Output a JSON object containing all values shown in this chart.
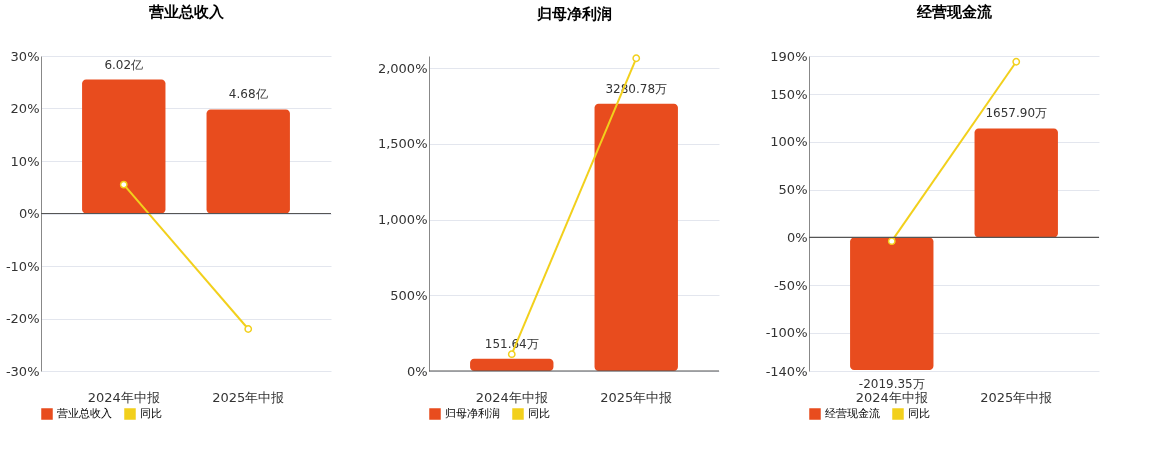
{
  "chart_data": [
    {
      "type": "bar",
      "title": "营业总收入",
      "categories": [
        "2024年中报",
        "2025年中报"
      ],
      "ylim": [
        -30,
        30
      ],
      "yticks": [
        {
          "value": 30,
          "label": "30%"
        },
        {
          "value": 20,
          "label": "20%"
        },
        {
          "value": 10,
          "label": "10%"
        },
        {
          "value": 0,
          "label": "0%"
        },
        {
          "value": -10,
          "label": "-10%"
        },
        {
          "value": -20,
          "label": "-20%"
        },
        {
          "value": -30,
          "label": "-30%"
        }
      ],
      "y2lim": [
        -7.08,
        7.08
      ],
      "grid": "y",
      "legend": "bottom",
      "marker": "circle",
      "series": [
        {
          "name": "营业总收入",
          "axis": "y2",
          "color": "#e84c1e",
          "values": [
            6.02,
            4.68
          ],
          "value_labels": [
            "6.02亿",
            "4.68亿"
          ]
        },
        {
          "name": "同比",
          "type": "line",
          "color": "#f2d01c",
          "values": [
            5.5,
            -22
          ]
        }
      ]
    },
    {
      "type": "bar",
      "title": "归母净利润",
      "categories": [
        "2024年中报",
        "2025年中报"
      ],
      "ylim": [
        0,
        2080
      ],
      "yticks": [
        {
          "value": 0,
          "label": "0%"
        },
        {
          "value": 500,
          "label": "500%"
        },
        {
          "value": 1000,
          "label": "1,000%"
        },
        {
          "value": 1500,
          "label": "1,500%"
        },
        {
          "value": 2000,
          "label": "2,000%"
        }
      ],
      "y2lim": [
        0,
        3866
      ],
      "grid": "y",
      "legend": "bottom",
      "marker": "circle",
      "series": [
        {
          "name": "归母净利润",
          "axis": "y2",
          "color": "#e84c1e",
          "values": [
            151.64,
            3280.78
          ],
          "value_labels": [
            "151.64万",
            "3280.78万"
          ]
        },
        {
          "name": "同比",
          "type": "line",
          "color": "#f2d01c",
          "values": [
            111,
            2065
          ]
        }
      ]
    },
    {
      "type": "bar",
      "title": "经营现金流",
      "categories": [
        "2024年中报",
        "2025年中报"
      ],
      "ylim": [
        -140,
        190
      ],
      "yticks": [
        {
          "value": 190,
          "label": "190%"
        },
        {
          "value": 150,
          "label": "150%"
        },
        {
          "value": 100,
          "label": "100%"
        },
        {
          "value": 50,
          "label": "50%"
        },
        {
          "value": 0,
          "label": "0%"
        },
        {
          "value": -50,
          "label": "-50%"
        },
        {
          "value": -100,
          "label": "-100%"
        },
        {
          "value": -140,
          "label": "-140%"
        }
      ],
      "y2lim": [
        -2034,
        2761
      ],
      "grid": "y",
      "legend": "bottom",
      "marker": "circle",
      "series": [
        {
          "name": "经营现金流",
          "axis": "y2",
          "color": "#e84c1e",
          "values": [
            -2019.35,
            1657.9
          ],
          "value_labels": [
            "-2019.35万",
            "1657.90万"
          ]
        },
        {
          "name": "同比",
          "type": "line",
          "color": "#f2d01c",
          "values": [
            -4,
            184
          ]
        }
      ]
    }
  ]
}
